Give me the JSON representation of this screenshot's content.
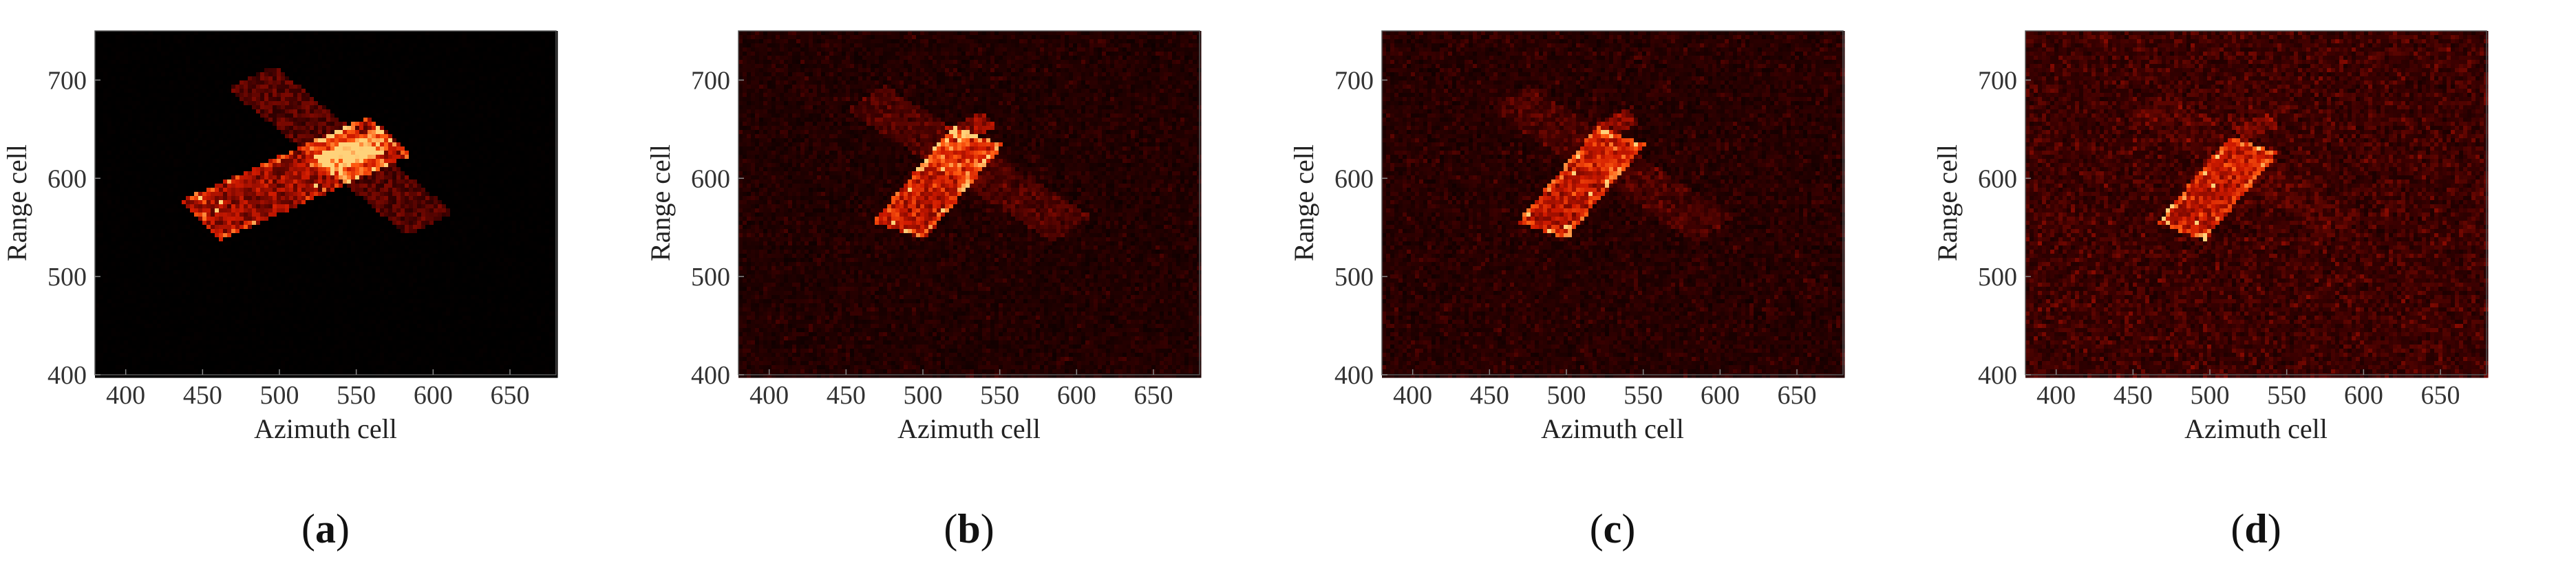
{
  "chart_data": [
    {
      "type": "heatmap",
      "caption_open": "(",
      "caption_letter": "a",
      "caption_close": ")",
      "xlabel": "Azimuth cell",
      "ylabel": "Range cell",
      "xlim": [
        380,
        680
      ],
      "ylim": [
        400,
        750
      ],
      "xticks": [
        400,
        450,
        500,
        550,
        600,
        650
      ],
      "yticks": [
        400,
        500,
        600,
        700
      ],
      "colormap": [
        "#000000",
        "#3a0000",
        "#8a0a00",
        "#d01a00",
        "#ff5a10",
        "#ffd27a"
      ],
      "background_level": 0.0,
      "noise_level": 0.02,
      "bright_hull": {
        "center": [
          510,
          600
        ],
        "length": 150,
        "width": 48,
        "angle_deg": 35,
        "intensity": 0.55
      },
      "faint_bar": {
        "center": [
          540,
          628
        ],
        "length": 190,
        "width": 38,
        "angle_deg": -52,
        "intensity": 0.32
      },
      "small_bar": {
        "center": [
          548,
          627
        ],
        "length": 60,
        "width": 22,
        "angle_deg": 35,
        "intensity": 0.45
      }
    },
    {
      "type": "heatmap",
      "caption_open": "(",
      "caption_letter": "b",
      "caption_close": ")",
      "xlabel": "Azimuth cell",
      "ylabel": "Range cell",
      "xlim": [
        380,
        680
      ],
      "ylim": [
        400,
        750
      ],
      "xticks": [
        400,
        450,
        500,
        550,
        600,
        650
      ],
      "yticks": [
        400,
        500,
        600,
        700
      ],
      "colormap": [
        "#000000",
        "#3a0000",
        "#8a0a00",
        "#d01a00",
        "#ff5a10",
        "#ffd27a"
      ],
      "background_level": 0.12,
      "noise_level": 0.14,
      "bright_hull": {
        "center": [
          510,
          595
        ],
        "length": 110,
        "width": 38,
        "angle_deg": 62,
        "intensity": 0.55
      },
      "faint_bar": {
        "center": [
          530,
          615
        ],
        "length": 190,
        "width": 36,
        "angle_deg": -45,
        "intensity": 0.16
      },
      "small_bar": {
        "center": [
          532,
          652
        ],
        "length": 30,
        "width": 18,
        "angle_deg": 35,
        "intensity": 0.35
      }
    },
    {
      "type": "heatmap",
      "caption_open": "(",
      "caption_letter": "c",
      "caption_close": ")",
      "xlabel": "Azimuth cell",
      "ylabel": "Range cell",
      "xlim": [
        380,
        680
      ],
      "ylim": [
        400,
        750
      ],
      "xticks": [
        400,
        450,
        500,
        550,
        600,
        650
      ],
      "yticks": [
        400,
        500,
        600,
        700
      ],
      "colormap": [
        "#000000",
        "#3a0000",
        "#8a0a00",
        "#d01a00",
        "#ff5a10",
        "#ffd27a"
      ],
      "background_level": 0.14,
      "noise_level": 0.16,
      "bright_hull": {
        "center": [
          510,
          595
        ],
        "length": 110,
        "width": 36,
        "angle_deg": 62,
        "intensity": 0.5
      },
      "faint_bar": {
        "center": [
          530,
          615
        ],
        "length": 190,
        "width": 36,
        "angle_deg": -45,
        "intensity": 0.12
      },
      "small_bar": {
        "center": [
          532,
          655
        ],
        "length": 28,
        "width": 16,
        "angle_deg": 35,
        "intensity": 0.3
      }
    },
    {
      "type": "heatmap",
      "caption_open": "(",
      "caption_letter": "d",
      "caption_close": ")",
      "xlabel": "Azimuth cell",
      "ylabel": "Range cell",
      "xlim": [
        380,
        680
      ],
      "ylim": [
        400,
        750
      ],
      "xticks": [
        400,
        450,
        500,
        550,
        600,
        650
      ],
      "yticks": [
        400,
        500,
        600,
        700
      ],
      "colormap": [
        "#000000",
        "#3a0000",
        "#8a0a00",
        "#d01a00",
        "#ff5a10",
        "#ffd27a"
      ],
      "background_level": 0.22,
      "noise_level": 0.2,
      "bright_hull": {
        "center": [
          505,
          590
        ],
        "length": 100,
        "width": 36,
        "angle_deg": 62,
        "intensity": 0.42
      },
      "faint_bar": {
        "center": [
          525,
          612
        ],
        "length": 180,
        "width": 34,
        "angle_deg": -45,
        "intensity": 0.06
      },
      "small_bar": {
        "center": [
          530,
          652
        ],
        "length": 26,
        "width": 16,
        "angle_deg": 35,
        "intensity": 0.22
      }
    }
  ]
}
